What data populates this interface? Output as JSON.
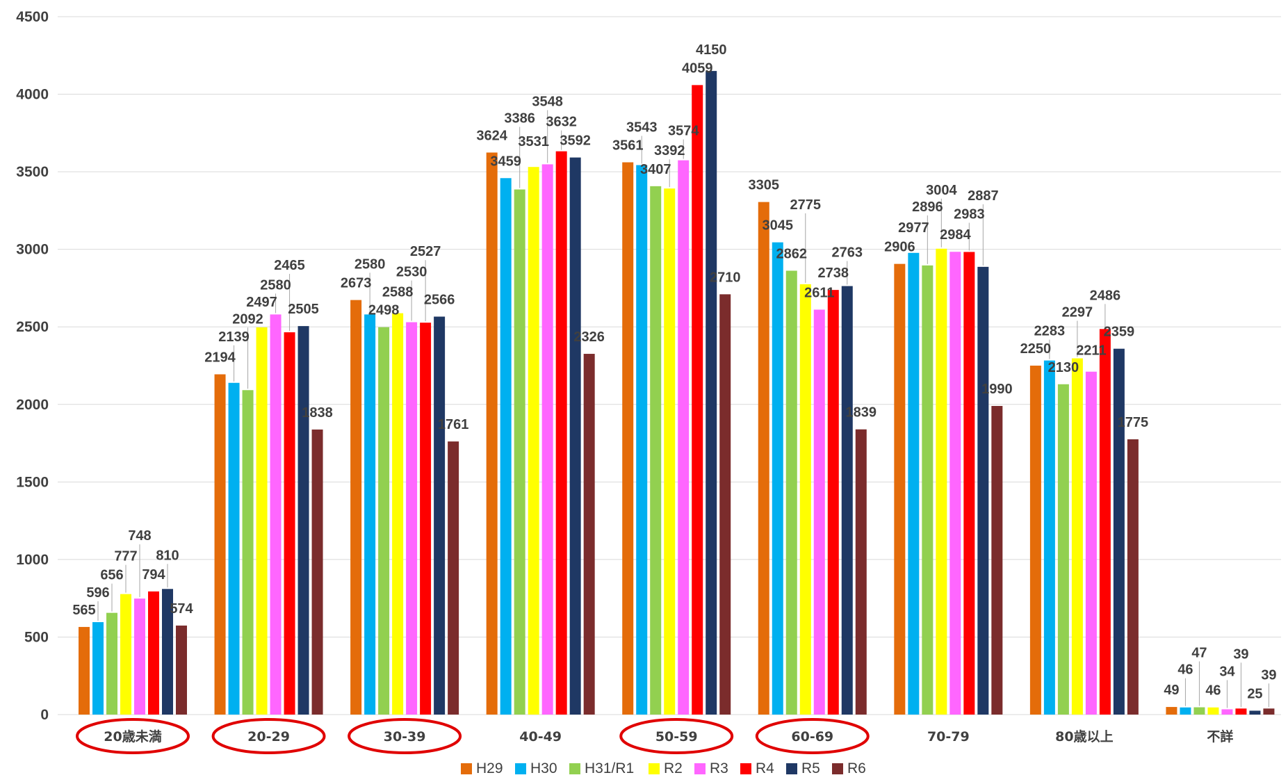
{
  "chart_data": {
    "type": "bar",
    "title": "",
    "xlabel": "",
    "ylabel": "",
    "ylim": [
      0,
      4500
    ],
    "yticks": [
      0,
      500,
      1000,
      1500,
      2000,
      2500,
      3000,
      3500,
      4000,
      4500
    ],
    "grid": true,
    "legend_position": "bottom",
    "categories": [
      "20歳未満",
      "20-29",
      "30-39",
      "40-49",
      "50-59",
      "60-69",
      "70-79",
      "80歳以上",
      "不詳"
    ],
    "highlighted_categories": [
      "20歳未満",
      "20-29",
      "30-39",
      "50-59",
      "60-69"
    ],
    "highlight_color": "#e00000",
    "series": [
      {
        "name": "H29",
        "color": "#e46c0a",
        "values": [
          565,
          2194,
          2673,
          3624,
          3561,
          3305,
          2906,
          2250,
          49
        ]
      },
      {
        "name": "H30",
        "color": "#00b0f0",
        "values": [
          596,
          2139,
          2580,
          3459,
          3543,
          3045,
          2977,
          2283,
          46
        ]
      },
      {
        "name": "H31/R1",
        "color": "#92d050",
        "values": [
          656,
          2092,
          2498,
          3386,
          3407,
          2862,
          2896,
          2130,
          47
        ]
      },
      {
        "name": "R2",
        "color": "#ffff00",
        "values": [
          777,
          2497,
          2588,
          3531,
          3392,
          2775,
          3004,
          2297,
          46
        ]
      },
      {
        "name": "R3",
        "color": "#ff66ff",
        "values": [
          748,
          2580,
          2530,
          3548,
          3574,
          2611,
          2984,
          2211,
          34
        ]
      },
      {
        "name": "R4",
        "color": "#ff0000",
        "values": [
          794,
          2465,
          2527,
          3632,
          4059,
          2738,
          2983,
          2486,
          39
        ]
      },
      {
        "name": "R5",
        "color": "#1f3864",
        "values": [
          810,
          2505,
          2566,
          3592,
          4150,
          2763,
          2887,
          2359,
          25
        ]
      },
      {
        "name": "R6",
        "color": "#7b2c2c",
        "values": [
          574,
          1838,
          1761,
          2326,
          2710,
          1839,
          1990,
          1775,
          39
        ]
      }
    ]
  }
}
